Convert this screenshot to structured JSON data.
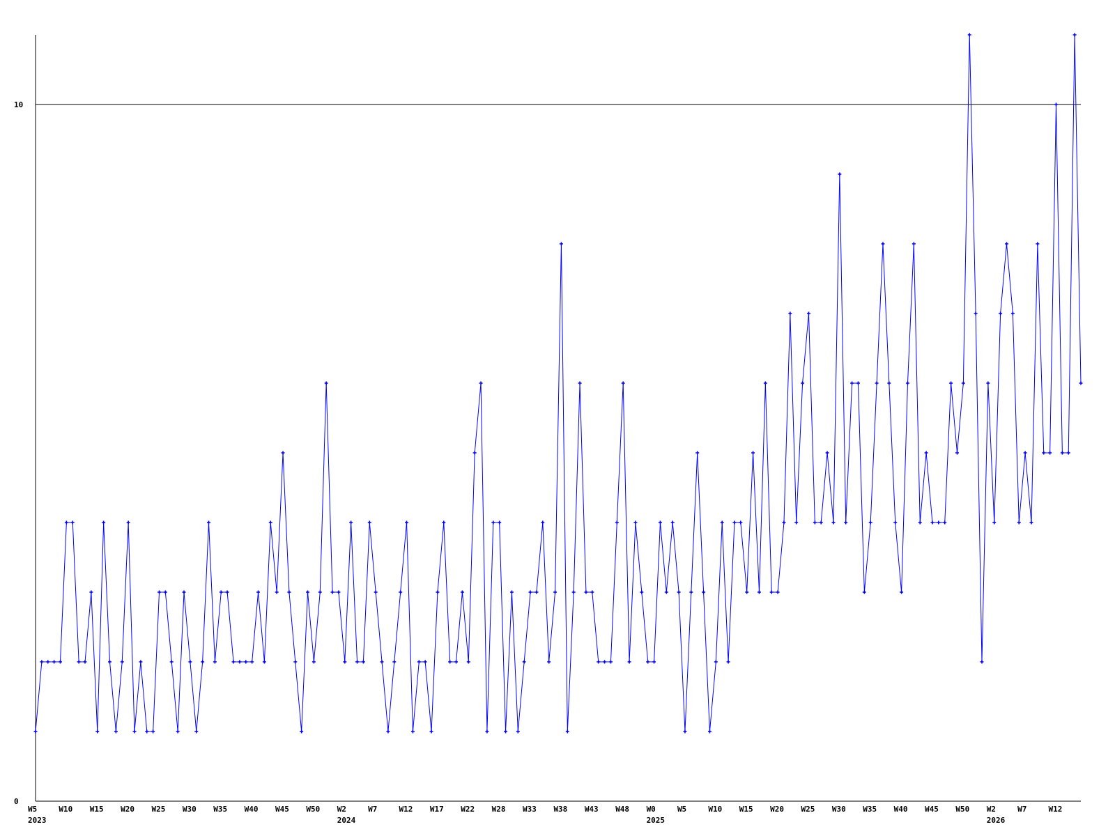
{
  "chart_data": {
    "type": "line",
    "title": "",
    "xlabel": "",
    "ylabel": "",
    "ylim": [
      0,
      11
    ],
    "y_ticks": [
      {
        "value": 0,
        "label": "0"
      },
      {
        "value": 10,
        "label": "10"
      }
    ],
    "reference_line": 10,
    "grid": false,
    "x_ticks": [
      {
        "index": 0,
        "label": "W5",
        "year": "2023"
      },
      {
        "index": 5,
        "label": "W10"
      },
      {
        "index": 10,
        "label": "W15"
      },
      {
        "index": 15,
        "label": "W20"
      },
      {
        "index": 20,
        "label": "W25"
      },
      {
        "index": 25,
        "label": "W30"
      },
      {
        "index": 30,
        "label": "W35"
      },
      {
        "index": 35,
        "label": "W40"
      },
      {
        "index": 40,
        "label": "W45"
      },
      {
        "index": 45,
        "label": "W50"
      },
      {
        "index": 50,
        "label": "W2",
        "year": "2024"
      },
      {
        "index": 55,
        "label": "W7"
      },
      {
        "index": 60,
        "label": "W12"
      },
      {
        "index": 65,
        "label": "W17"
      },
      {
        "index": 70,
        "label": "W22"
      },
      {
        "index": 75,
        "label": "W28"
      },
      {
        "index": 80,
        "label": "W33"
      },
      {
        "index": 85,
        "label": "W38"
      },
      {
        "index": 90,
        "label": "W43"
      },
      {
        "index": 95,
        "label": "W48"
      },
      {
        "index": 100,
        "label": "W0",
        "year": "2025"
      },
      {
        "index": 105,
        "label": "W5"
      },
      {
        "index": 110,
        "label": "W10"
      },
      {
        "index": 115,
        "label": "W15"
      },
      {
        "index": 120,
        "label": "W20"
      },
      {
        "index": 125,
        "label": "W25"
      },
      {
        "index": 130,
        "label": "W30"
      },
      {
        "index": 135,
        "label": "W35"
      },
      {
        "index": 140,
        "label": "W40"
      },
      {
        "index": 145,
        "label": "W45"
      },
      {
        "index": 150,
        "label": "W50"
      },
      {
        "index": 155,
        "label": "W2",
        "year": "2026"
      },
      {
        "index": 160,
        "label": "W7"
      },
      {
        "index": 165,
        "label": "W12"
      }
    ],
    "series": [
      {
        "color": "#0000ff",
        "values": [
          1,
          2,
          2,
          2,
          2,
          4,
          4,
          2,
          2,
          3,
          1,
          4,
          2,
          1,
          2,
          4,
          1,
          2,
          1,
          1,
          3,
          3,
          2,
          1,
          3,
          2,
          1,
          2,
          4,
          2,
          3,
          3,
          2,
          2,
          2,
          2,
          3,
          2,
          4,
          3,
          5,
          3,
          2,
          1,
          3,
          2,
          3,
          6,
          3,
          3,
          2,
          4,
          2,
          2,
          4,
          3,
          2,
          1,
          2,
          3,
          4,
          1,
          2,
          2,
          1,
          3,
          4,
          2,
          2,
          3,
          2,
          5,
          6,
          1,
          4,
          4,
          1,
          3,
          1,
          2,
          3,
          3,
          4,
          2,
          3,
          8,
          1,
          3,
          6,
          3,
          3,
          2,
          2,
          2,
          4,
          6,
          2,
          4,
          3,
          2,
          2,
          4,
          3,
          4,
          3,
          1,
          3,
          5,
          3,
          1,
          2,
          4,
          2,
          4,
          4,
          3,
          5,
          3,
          6,
          3,
          3,
          4,
          7,
          4,
          6,
          7,
          4,
          4,
          5,
          4,
          9,
          4,
          6,
          6,
          3,
          4,
          6,
          8,
          6,
          4,
          3,
          6,
          8,
          4,
          5,
          4,
          4,
          4,
          6,
          5,
          6,
          11,
          7,
          2,
          6,
          4,
          7,
          8,
          7,
          4,
          5,
          4,
          8,
          5,
          5,
          10,
          5,
          5,
          11,
          6
        ]
      }
    ]
  }
}
